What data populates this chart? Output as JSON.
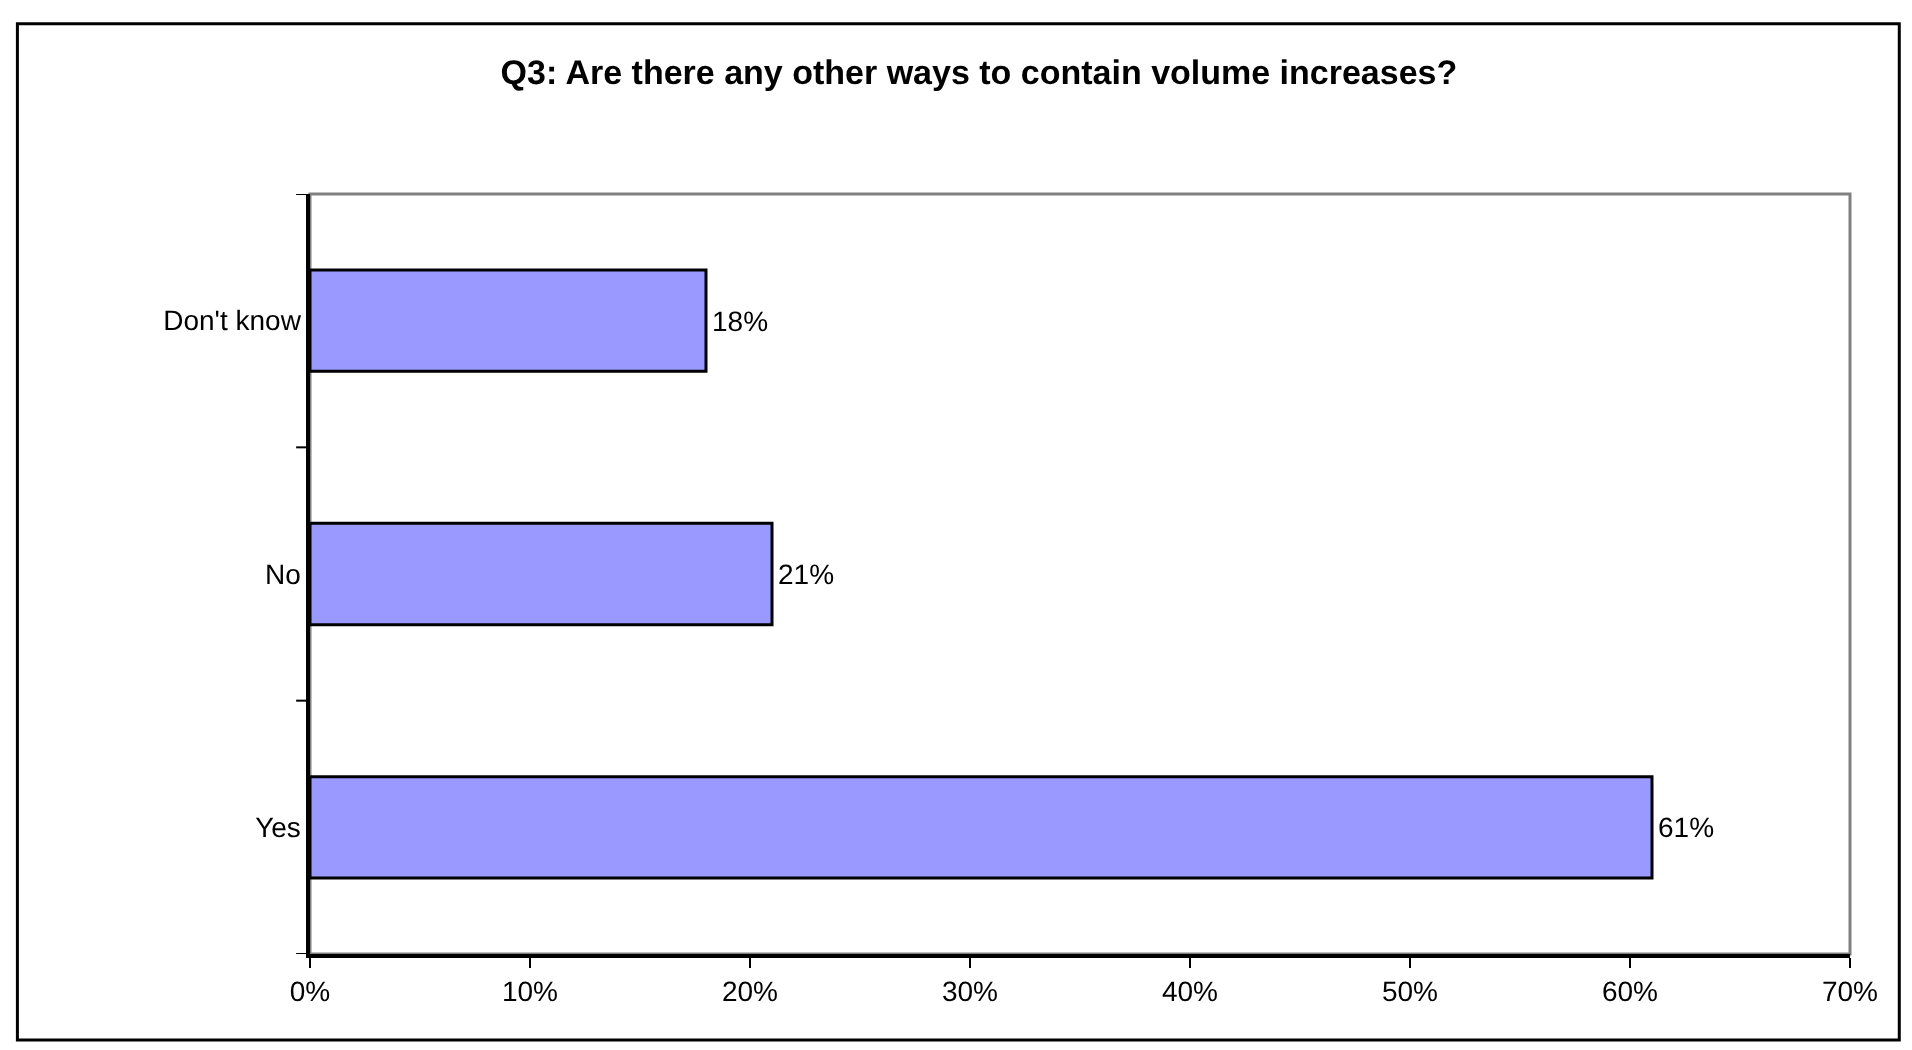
{
  "chart_data": {
    "type": "bar",
    "orientation": "horizontal",
    "title": "Q3: Are there any other ways to contain volume increases?",
    "categories": [
      "Don't know",
      "No",
      "Yes"
    ],
    "values": [
      18,
      21,
      61
    ],
    "value_labels": [
      "18%",
      "21%",
      "61%"
    ],
    "color": "#9999ff",
    "xlim": [
      0,
      70
    ],
    "xticks": [
      {
        "value": 0,
        "label": "0%"
      },
      {
        "value": 10,
        "label": "10%"
      },
      {
        "value": 20,
        "label": "20%"
      },
      {
        "value": 30,
        "label": "30%"
      },
      {
        "value": 40,
        "label": "40%"
      },
      {
        "value": 50,
        "label": "50%"
      },
      {
        "value": 60,
        "label": "60%"
      },
      {
        "value": 70,
        "label": "70%"
      }
    ]
  }
}
